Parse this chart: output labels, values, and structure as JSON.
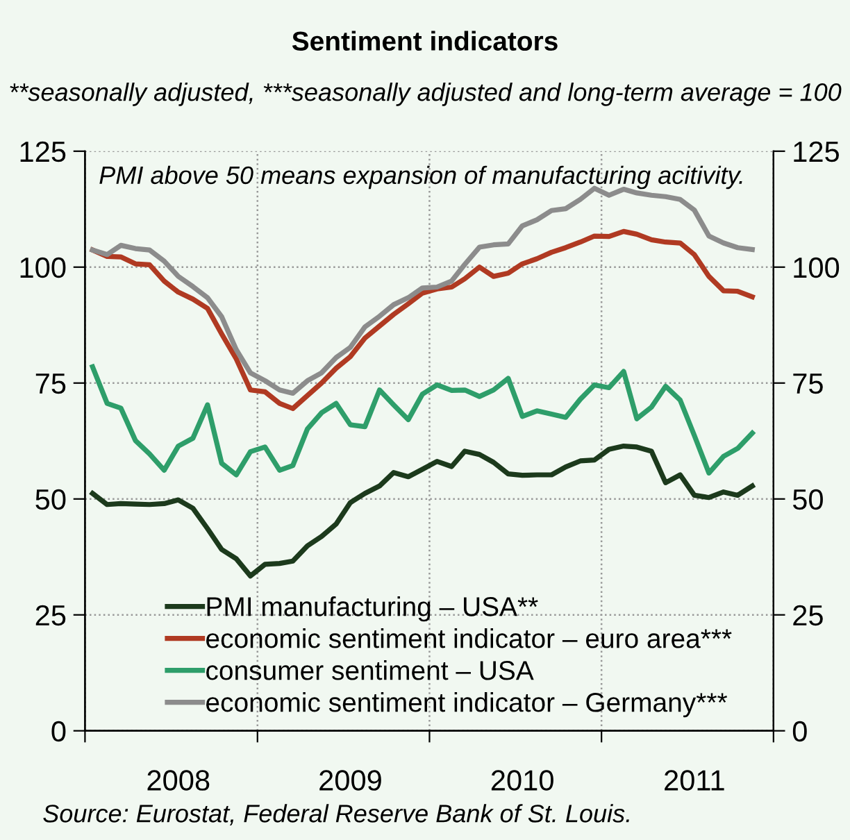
{
  "chart_data": {
    "type": "line",
    "title": "Sentiment indicators",
    "subtitle": "**seasonally adjusted, ***seasonally adjusted and long-term average = 100",
    "annotations": [
      "PMI above 50 means expansion of manufacturing acitivity.",
      "Source: Eurostat, Federal Reserve Bank of St. Louis."
    ],
    "x": [
      "2008-01",
      "2008-02",
      "2008-03",
      "2008-04",
      "2008-05",
      "2008-06",
      "2008-07",
      "2008-08",
      "2008-09",
      "2008-10",
      "2008-11",
      "2008-12",
      "2009-01",
      "2009-02",
      "2009-03",
      "2009-04",
      "2009-05",
      "2009-06",
      "2009-07",
      "2009-08",
      "2009-09",
      "2009-10",
      "2009-11",
      "2009-12",
      "2010-01",
      "2010-02",
      "2010-03",
      "2010-04",
      "2010-05",
      "2010-06",
      "2010-07",
      "2010-08",
      "2010-09",
      "2010-10",
      "2010-11",
      "2010-12",
      "2011-01",
      "2011-02",
      "2011-03",
      "2011-04",
      "2011-05",
      "2011-06",
      "2011-07",
      "2011-08",
      "2011-09",
      "2011-10",
      "2011-11"
    ],
    "series": [
      {
        "name": "PMI manufacturing – USA**",
        "color": "#1c3a1c",
        "values": [
          51.2,
          48.8,
          49.0,
          48.9,
          48.8,
          49.0,
          49.8,
          48.0,
          43.6,
          39.1,
          37.1,
          33.4,
          35.9,
          36.1,
          36.6,
          39.9,
          41.9,
          44.6,
          49.2,
          51.2,
          52.8,
          55.7,
          54.8,
          56.4,
          58.1,
          57.0,
          60.3,
          59.6,
          57.9,
          55.4,
          55.1,
          55.2,
          55.2,
          56.9,
          58.2,
          58.4,
          60.7,
          61.4,
          61.2,
          60.3,
          53.5,
          55.2,
          50.8,
          50.3,
          51.5,
          50.8,
          52.8
        ]
      },
      {
        "name": "economic sentiment indicator – euro area***",
        "color": "#b03a22",
        "values": [
          103.7,
          102.3,
          102.2,
          100.7,
          100.5,
          97.0,
          94.6,
          93.1,
          91.1,
          85.6,
          80.2,
          73.5,
          73.1,
          70.6,
          69.5,
          72.3,
          75.0,
          78.2,
          80.7,
          84.7,
          87.3,
          89.8,
          92.1,
          94.4,
          95.3,
          95.7,
          97.5,
          100.0,
          98.0,
          98.7,
          100.7,
          101.8,
          103.2,
          104.2,
          105.4,
          106.7,
          106.6,
          107.7,
          107.1,
          105.9,
          105.4,
          105.2,
          102.7,
          98.0,
          94.9,
          94.8,
          93.6
        ]
      },
      {
        "name": "consumer sentiment – USA",
        "color": "#2e9e6a",
        "values": [
          78.5,
          70.6,
          69.6,
          62.6,
          59.7,
          56.2,
          61.4,
          63.1,
          70.3,
          57.7,
          55.2,
          60.2,
          61.2,
          56.2,
          57.2,
          65.1,
          68.6,
          70.6,
          66.0,
          65.6,
          73.5,
          70.3,
          67.1,
          72.6,
          74.6,
          73.4,
          73.5,
          72.1,
          73.5,
          76.0,
          67.8,
          69.0,
          68.3,
          67.6,
          71.5,
          74.6,
          74.0,
          77.5,
          67.3,
          69.8,
          74.3,
          71.3,
          63.7,
          55.6,
          59.2,
          60.9,
          64.2
        ]
      },
      {
        "name": "economic sentiment indicator – Germany***",
        "color": "#8c8c8c",
        "values": [
          103.7,
          102.7,
          104.7,
          104.0,
          103.7,
          101.3,
          98.0,
          95.8,
          93.4,
          89.3,
          82.2,
          77.2,
          75.5,
          73.5,
          72.8,
          75.5,
          77.2,
          80.5,
          82.7,
          87.1,
          89.4,
          91.9,
          93.4,
          95.5,
          95.7,
          97.0,
          100.6,
          104.3,
          104.8,
          105.0,
          108.9,
          110.2,
          112.2,
          112.6,
          114.6,
          117.0,
          115.5,
          116.8,
          116.0,
          115.5,
          115.2,
          114.6,
          112.3,
          106.7,
          105.2,
          104.2,
          103.8
        ]
      }
    ],
    "xlim": [
      "2007-12-16",
      "2011-12-16"
    ],
    "xticks": [
      {
        "value": "2007-12-16",
        "label": null
      },
      {
        "value": "2008-07-01",
        "label": "2008"
      },
      {
        "value": "2008-12-16",
        "label": null
      },
      {
        "value": "2009-07-01",
        "label": "2009"
      },
      {
        "value": "2009-12-16",
        "label": null
      },
      {
        "value": "2010-07-01",
        "label": "2010"
      },
      {
        "value": "2010-12-16",
        "label": null
      },
      {
        "value": "2011-07-01",
        "label": "2011"
      },
      {
        "value": "2011-12-16",
        "label": null
      }
    ],
    "ylim": [
      0,
      125
    ],
    "yticks": [
      0,
      25,
      50,
      75,
      100,
      125
    ],
    "y2lim": [
      0,
      125
    ],
    "y2ticks": [
      0,
      25,
      50,
      75,
      100,
      125
    ],
    "grid": true,
    "legend": "bottom left",
    "line_style": "solid",
    "marker": "none"
  }
}
